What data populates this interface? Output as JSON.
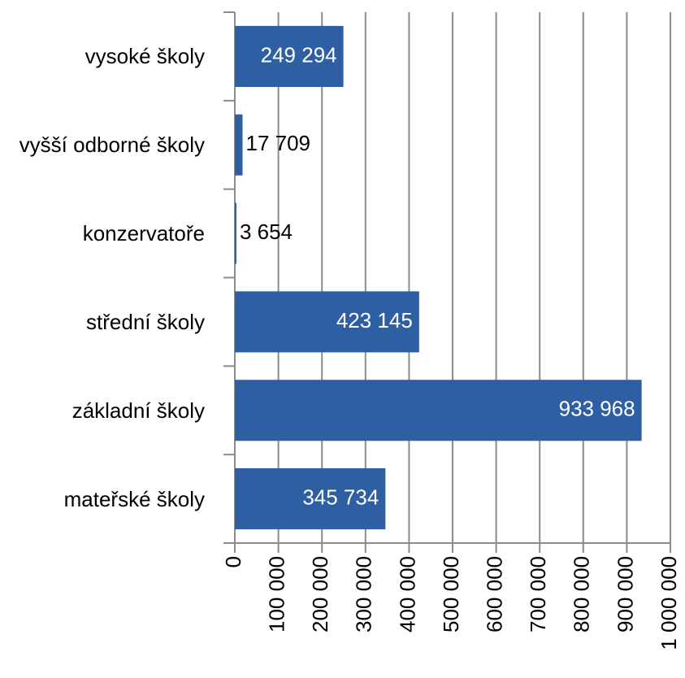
{
  "chart_data": {
    "type": "bar",
    "orientation": "horizontal",
    "categories": [
      "vysoké školy",
      "vyšší odborné školy",
      "konzervatoře",
      "střední školy",
      "základní školy",
      "mateřské školy"
    ],
    "values": [
      249294,
      17709,
      3654,
      423145,
      933968,
      345734
    ],
    "value_labels": [
      "249 294",
      "17 709",
      "3 654",
      "423 145",
      "933 968",
      "345 734"
    ],
    "color": "#2e5fa3",
    "xlim": [
      0,
      1000000
    ],
    "xticks": [
      0,
      {
        "value": 100000,
        "label": "100 000"
      },
      {
        "value": 200000,
        "label": "200 000"
      },
      {
        "value": 300000,
        "label": "300 000"
      },
      {
        "value": 400000,
        "label": "400 000"
      },
      {
        "value": 500000,
        "label": "500 000"
      },
      {
        "value": 600000,
        "label": "600 000"
      },
      {
        "value": 700000,
        "label": "700 000"
      },
      {
        "value": 800000,
        "label": "800 000"
      },
      {
        "value": 900000,
        "label": "900 000"
      },
      {
        "value": 1000000,
        "label": "1 000 000"
      }
    ],
    "grid": true
  }
}
